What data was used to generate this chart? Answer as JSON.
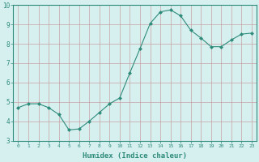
{
  "x": [
    0,
    1,
    2,
    3,
    4,
    5,
    6,
    7,
    8,
    9,
    10,
    11,
    12,
    13,
    14,
    15,
    16,
    17,
    18,
    19,
    20,
    21,
    22,
    23
  ],
  "y": [
    4.7,
    4.9,
    4.9,
    4.7,
    4.35,
    3.55,
    3.6,
    4.0,
    4.45,
    4.9,
    5.2,
    6.5,
    7.75,
    9.05,
    9.65,
    9.75,
    9.45,
    8.7,
    8.3,
    7.85,
    7.85,
    8.2,
    8.5,
    8.55
  ],
  "line_color": "#2e8b7a",
  "marker": "D",
  "marker_size": 2,
  "bg_color": "#d6f0f0",
  "grid_color": "#c8a0a0",
  "axis_color": "#2e8b7a",
  "tick_label_color": "#2e8b7a",
  "xlabel": "Humidex (Indice chaleur)",
  "xlabel_color": "#2e8b7a",
  "xlabel_fontsize": 6.5,
  "ylim": [
    3,
    10
  ],
  "xlim": [
    -0.5,
    23.5
  ],
  "yticks": [
    3,
    4,
    5,
    6,
    7,
    8,
    9,
    10
  ],
  "xticks": [
    0,
    1,
    2,
    3,
    4,
    5,
    6,
    7,
    8,
    9,
    10,
    11,
    12,
    13,
    14,
    15,
    16,
    17,
    18,
    19,
    20,
    21,
    22,
    23
  ],
  "tick_fontsize_x": 4.5,
  "tick_fontsize_y": 5.5
}
